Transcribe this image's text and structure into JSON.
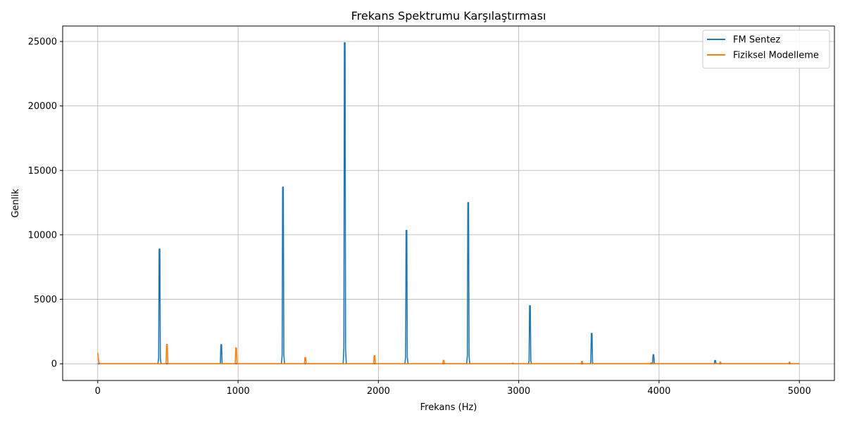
{
  "chart_data": {
    "type": "line",
    "title": "Frekans Spektrumu Karşılaştırması",
    "xlabel": "Frekans (Hz)",
    "ylabel": "Genlik",
    "xlim": [
      -250,
      5250
    ],
    "ylim": [
      -1300,
      26200
    ],
    "x_ticks": [
      0,
      1000,
      2000,
      3000,
      4000,
      5000
    ],
    "y_ticks": [
      0,
      5000,
      10000,
      15000,
      20000,
      25000
    ],
    "grid": true,
    "legend_position": "top-right",
    "series": [
      {
        "name": "FM Sentez",
        "color": "#1f77b4",
        "peaks": [
          {
            "x": 440,
            "y": 8900
          },
          {
            "x": 880,
            "y": 1480
          },
          {
            "x": 1320,
            "y": 13700
          },
          {
            "x": 1760,
            "y": 24900
          },
          {
            "x": 2200,
            "y": 10350
          },
          {
            "x": 2640,
            "y": 12500
          },
          {
            "x": 3080,
            "y": 4500
          },
          {
            "x": 3520,
            "y": 2350
          },
          {
            "x": 3960,
            "y": 700
          },
          {
            "x": 4400,
            "y": 250
          }
        ],
        "x_range": [
          0,
          5000
        ]
      },
      {
        "name": "Fiziksel Modelleme",
        "color": "#ff7f0e",
        "peaks": [
          {
            "x": 0,
            "y": 850
          },
          {
            "x": 493,
            "y": 1500
          },
          {
            "x": 986,
            "y": 1230
          },
          {
            "x": 1479,
            "y": 480
          },
          {
            "x": 1972,
            "y": 620
          },
          {
            "x": 2465,
            "y": 260
          },
          {
            "x": 2958,
            "y": 50
          },
          {
            "x": 3451,
            "y": 180
          },
          {
            "x": 3944,
            "y": 80
          },
          {
            "x": 4437,
            "y": 130
          },
          {
            "x": 4930,
            "y": 120
          }
        ],
        "x_range": [
          0,
          5000
        ]
      }
    ]
  }
}
